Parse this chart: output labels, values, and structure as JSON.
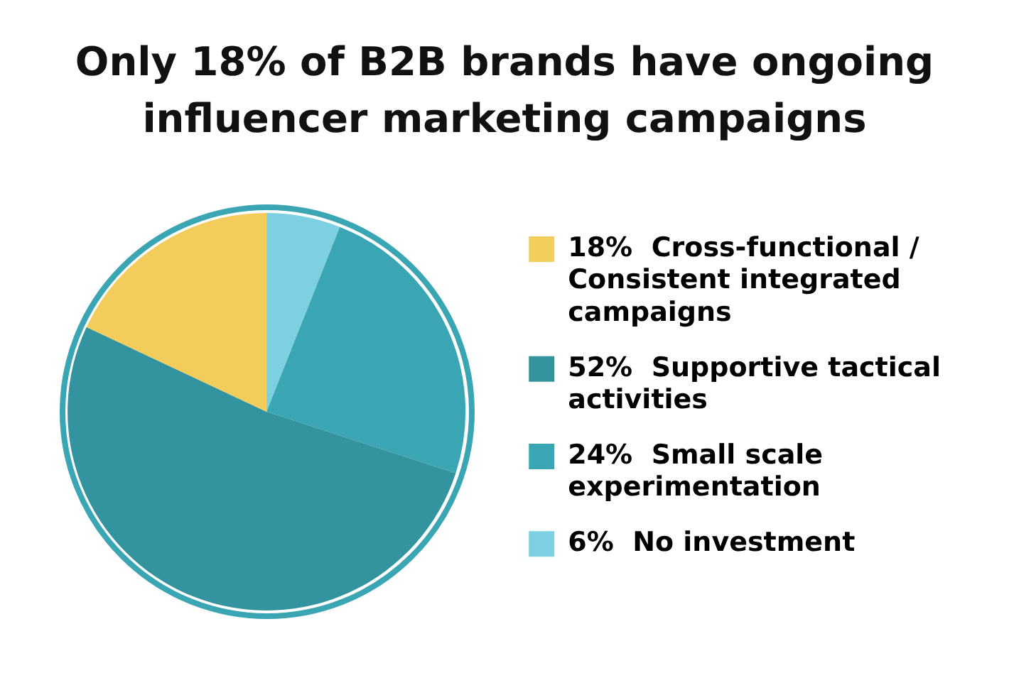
{
  "chart_data": {
    "type": "pie",
    "title": "Only 18% of B2B brands have ongoing influencer marketing campaigns",
    "categories": [
      "No investment",
      "Small scale experimentation",
      "Supportive tactical activities",
      "Cross-functional / Consistent integrated campaigns"
    ],
    "values": [
      6,
      24,
      52,
      18
    ],
    "value_labels": [
      "6%",
      "24%",
      "52%",
      "18%"
    ],
    "colors": [
      "#7dd0e2",
      "#3aa6b3",
      "#33939e",
      "#f2cd5c"
    ],
    "legend": "right"
  }
}
